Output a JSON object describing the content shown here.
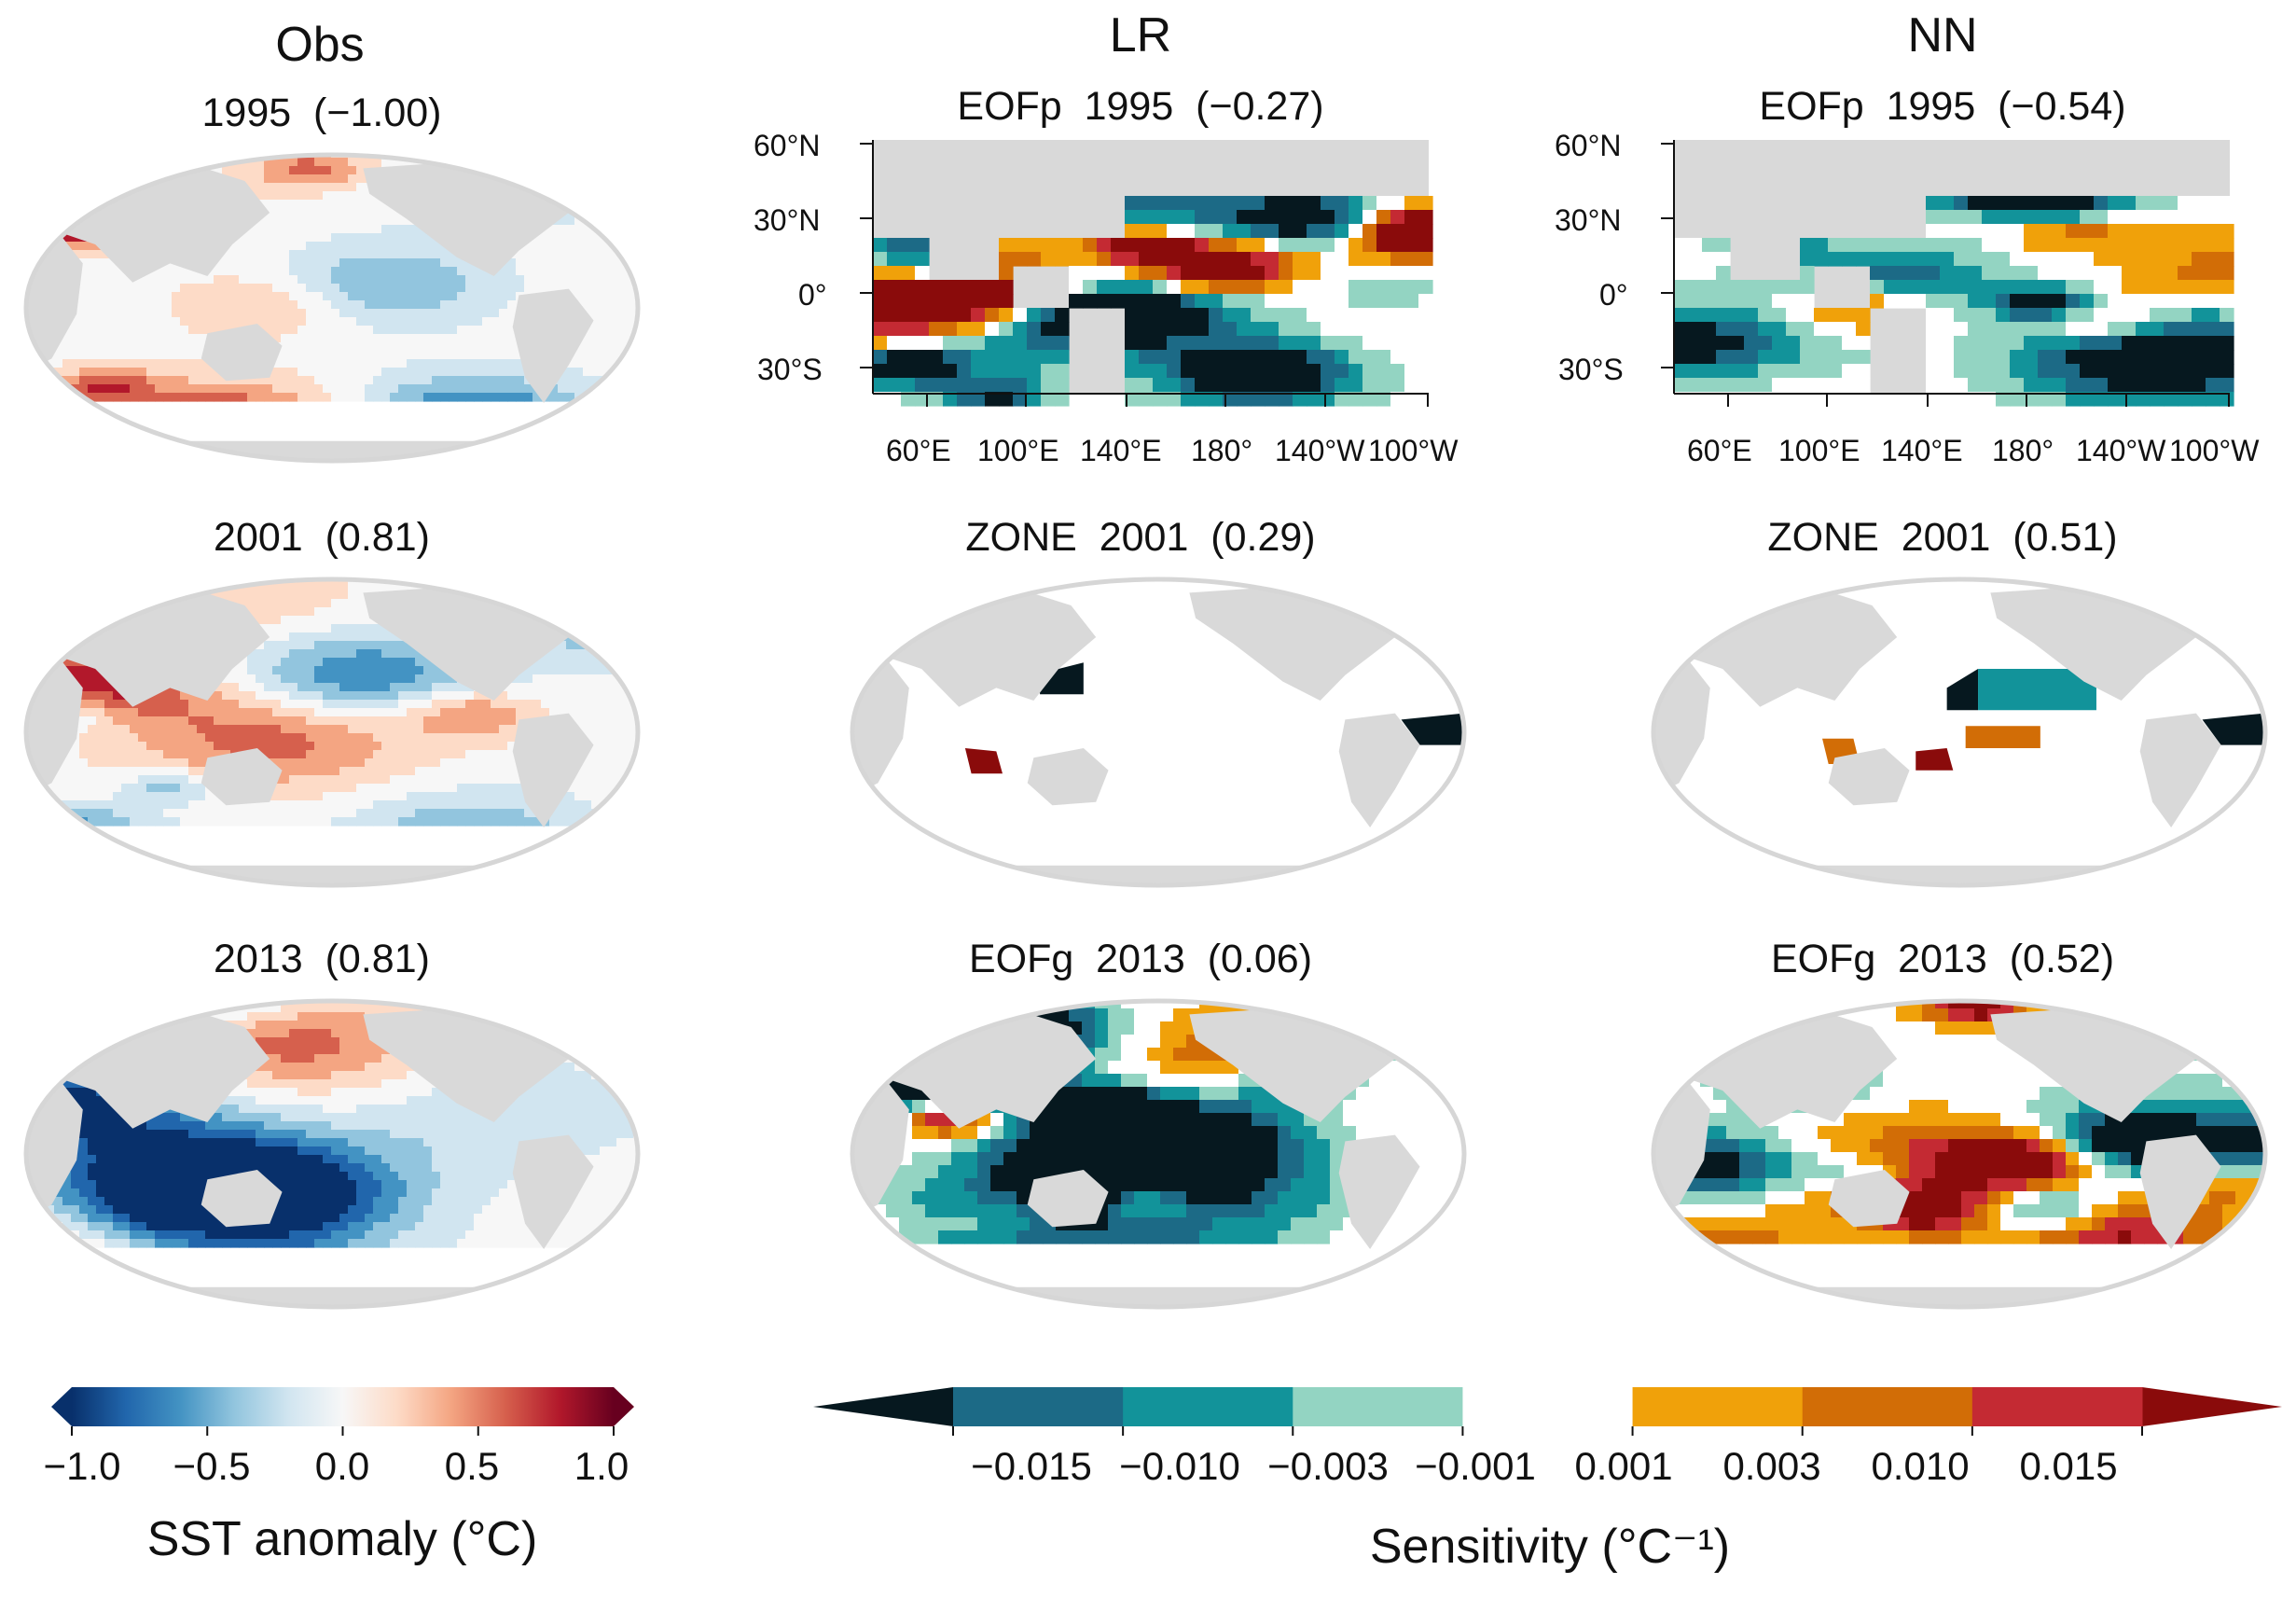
{
  "columns": [
    "Obs",
    "LR",
    "NN"
  ],
  "panels": {
    "obs_1995": {
      "label": "1995  (−1.00)"
    },
    "obs_2001": {
      "label": "2001  (0.81)"
    },
    "obs_2013": {
      "label": "2013  (0.81)"
    },
    "lr_1995": {
      "label": "EOFp  1995  (−0.27)"
    },
    "lr_2001": {
      "label": "ZONE  2001  (0.29)"
    },
    "lr_2013": {
      "label": "EOFg  2013  (0.06)"
    },
    "nn_1995": {
      "label": "EOFp  1995  (−0.54)"
    },
    "nn_2001": {
      "label": "ZONE  2001  (0.51)"
    },
    "nn_2013": {
      "label": "EOFg  2013  (0.52)"
    }
  },
  "regional_axes": {
    "lat_ticks": [
      "60°N",
      "30°N",
      "0°",
      "30°S"
    ],
    "lon_ticks": [
      "60°E",
      "100°E",
      "140°E",
      "180°",
      "140°W",
      "100°W"
    ]
  },
  "colors": {
    "land": "#d9d9d9",
    "frame": "#d6d6d6",
    "sst_scale": [
      "#08306b",
      "#2166ac",
      "#4393c3",
      "#92c5de",
      "#d1e5f0",
      "#f7f7f7",
      "#fddbc7",
      "#f4a582",
      "#d6604d",
      "#b2182b",
      "#67001f"
    ],
    "sens_scale": [
      "#06181f",
      "#1c6a86",
      "#12939a",
      "#93d4c2",
      "#ffffff",
      "#f0a10a",
      "#d26d06",
      "#c42a33",
      "#8a0b0b"
    ]
  },
  "chart_data": {
    "type": "heatmap",
    "description_rows": [
      "1995",
      "2001",
      "2013"
    ],
    "colorbars": {
      "sst": {
        "label": "SST anomaly (°C)",
        "min": -1.0,
        "max": 1.0,
        "ticks": [
          "−1.0",
          "−0.5",
          "0.0",
          "0.5",
          "1.0"
        ],
        "tick_values": [
          -1.0,
          -0.5,
          0.0,
          0.5,
          1.0
        ]
      },
      "sensitivity": {
        "label": "Sensitivity (°C⁻¹)",
        "boundaries": [
          -0.015,
          -0.01,
          -0.003,
          -0.001,
          0.001,
          0.003,
          0.01,
          0.015
        ],
        "ticks": [
          "−0.015",
          "−0.010",
          "−0.003",
          "−0.001",
          "0.001",
          "0.003",
          "0.010",
          "0.015"
        ]
      }
    }
  }
}
